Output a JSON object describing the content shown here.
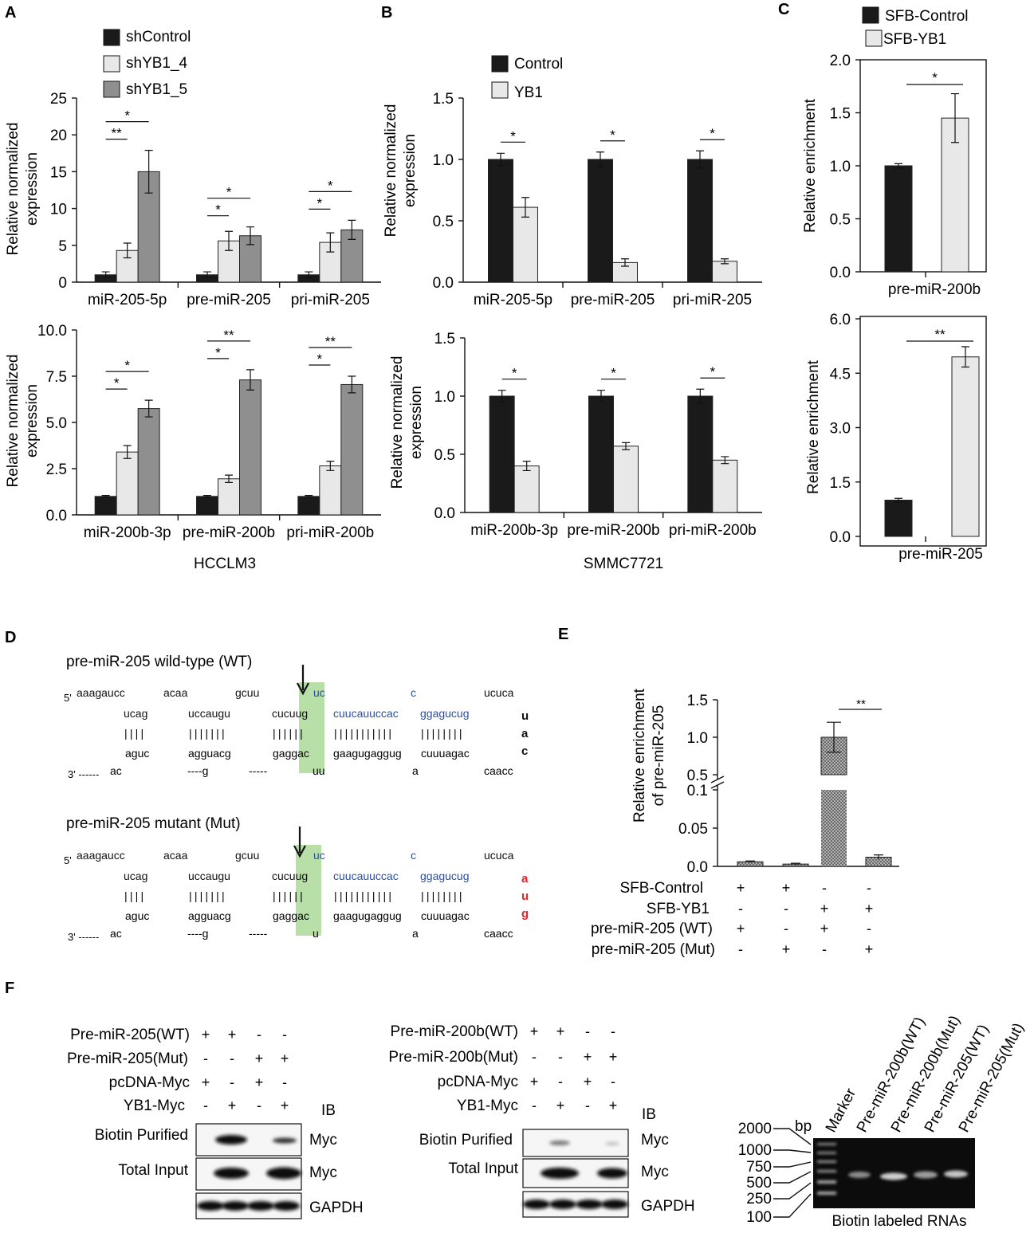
{
  "panels": {
    "A": {
      "letter": "A",
      "cell_line": "HCCLM3",
      "ylabel1": "Relative normalized",
      "ylabel2": "expression",
      "legend": [
        "shControl",
        "shYB1_4",
        "shYB1_5"
      ],
      "colors": [
        "#1a1a1a",
        "#e8e8e8",
        "#8f8f8f"
      ]
    },
    "B": {
      "letter": "B",
      "cell_line": "SMMC7721",
      "ylabel1": "Relative normalized",
      "ylabel2": "expression",
      "legend": [
        "Control",
        "YB1"
      ],
      "colors": [
        "#1a1a1a",
        "#e8e8e8"
      ]
    },
    "C": {
      "letter": "C",
      "ylabel": "Relative enrichment",
      "legend": [
        "SFB-Control",
        "SFB-YB1"
      ],
      "colors": [
        "#1a1a1a",
        "#e8e8e8"
      ]
    },
    "D": {
      "letter": "D",
      "wt": {
        "title": "pre-miR-205 wild-type (WT)",
        "top_unpaired": [
          "aaagaucc",
          "acaa",
          "gcuu",
          "uc",
          "c",
          "ucuca"
        ],
        "top_paired": [
          "ucag",
          "uccaugu",
          "cucuug",
          "cuucauuccac",
          "ggagucug"
        ],
        "bars": [
          "||||",
          "|||||||",
          "||||||",
          "|||||||||||",
          "||||||||"
        ],
        "bottom_paired": [
          "aguc",
          "agguacg",
          "gaggac",
          "gaagugaggug",
          "cuuuagac"
        ],
        "bottom_unpaired": [
          "ac",
          "----g",
          "-----",
          "uu",
          "a",
          "caacc"
        ],
        "loop": [
          "u",
          "a",
          "c"
        ],
        "prime5": "5'",
        "prime3": "3' ------"
      },
      "mut": {
        "title": "pre-miR-205 mutant (Mut)",
        "top_unpaired": [
          "aaagaucc",
          "acaa",
          "gcuu",
          "uc",
          "c",
          "ucuca"
        ],
        "top_paired": [
          "ucag",
          "uccaugu",
          "cucuug",
          "cuucauuccac",
          "ggagucug"
        ],
        "bars": [
          "||||",
          "|||||||",
          "||||||",
          "|||||||||||",
          "||||||||"
        ],
        "bottom_paired": [
          "aguc",
          "agguacg",
          "gaggac",
          "gaagugaggug",
          "cuuuagac"
        ],
        "bottom_unpaired": [
          "ac",
          "----g",
          "-----",
          "u",
          "a",
          "caacc"
        ],
        "loop": [
          "a",
          "u",
          "g"
        ],
        "prime5": "5'",
        "prime3": "3' ------"
      },
      "blue": "#2b4fa3",
      "red": "#e0262a",
      "highlight": "#b9dfa8"
    },
    "E": {
      "letter": "E",
      "ylabel1": "Relative enrichment",
      "ylabel2": "of pre-miR-205",
      "conditions": [
        {
          "label": "SFB-Control",
          "signs": [
            "+",
            "+",
            "-",
            "-"
          ]
        },
        {
          "label": "SFB-YB1",
          "signs": [
            "-",
            "-",
            "+",
            "+"
          ]
        },
        {
          "label": "pre-miR-205 (WT)",
          "signs": [
            "+",
            "-",
            "+",
            "-"
          ]
        },
        {
          "label": "pre-miR-205 (Mut)",
          "signs": [
            "-",
            "+",
            "-",
            "+"
          ]
        }
      ]
    },
    "F": {
      "letter": "F",
      "left": {
        "rows": [
          {
            "label": "Pre-miR-205(WT)",
            "signs": [
              "+",
              "+",
              "-",
              "-"
            ]
          },
          {
            "label": "Pre-miR-205(Mut)",
            "signs": [
              "-",
              "-",
              "+",
              "+"
            ]
          },
          {
            "label": "pcDNA-Myc",
            "signs": [
              "+",
              "-",
              "+",
              "-"
            ]
          },
          {
            "label": "YB1-Myc",
            "signs": [
              "-",
              "+",
              "-",
              "+"
            ]
          }
        ],
        "ib": "IB",
        "blot_labels": [
          "Biotin Purified",
          "Total Input"
        ],
        "antibodies": [
          "Myc",
          "Myc",
          "GAPDH"
        ]
      },
      "right": {
        "rows": [
          {
            "label": "Pre-miR-200b(WT)",
            "signs": [
              "+",
              "+",
              "-",
              "-"
            ]
          },
          {
            "label": "Pre-miR-200b(Mut)",
            "signs": [
              "-",
              "-",
              "+",
              "+"
            ]
          },
          {
            "label": "pcDNA-Myc",
            "signs": [
              "+",
              "-",
              "+",
              "-"
            ]
          },
          {
            "label": "YB1-Myc",
            "signs": [
              "-",
              "+",
              "-",
              "+"
            ]
          }
        ],
        "ib": "IB",
        "blot_labels": [
          "Biotin Purified",
          "Total Input"
        ],
        "antibodies": [
          "Myc",
          "Myc",
          "GAPDH"
        ]
      },
      "gel": {
        "lanes": [
          "Marker",
          "Pre-miR-200b(WT)",
          "Pre-miR-200b(Mut)",
          "Pre-miR-205(WT)",
          "Pre-miR-205(Mut)"
        ],
        "sizes": [
          "2000",
          "1000",
          "750",
          "500",
          "250",
          "100"
        ],
        "unit": "bp",
        "caption": "Biotin labeled RNAs"
      }
    }
  },
  "chart_data": [
    {
      "id": "A-top",
      "type": "bar",
      "categories": [
        "miR-205-5p",
        "pre-miR-205",
        "pri-miR-205"
      ],
      "series": [
        {
          "name": "shControl",
          "values": [
            1,
            1,
            1
          ],
          "errors": [
            0.4,
            0.4,
            0.4
          ]
        },
        {
          "name": "shYB1_4",
          "values": [
            4.3,
            5.6,
            5.4
          ],
          "errors": [
            1.0,
            1.3,
            1.3
          ]
        },
        {
          "name": "shYB1_5",
          "values": [
            15,
            6.3,
            7.1
          ],
          "errors": [
            2.9,
            1.2,
            1.3
          ]
        }
      ],
      "ylim": [
        0,
        25
      ],
      "yticks": [
        0,
        5,
        10,
        15,
        20,
        25
      ],
      "ytick_labels": [
        "0",
        "5",
        "10",
        "15",
        "20",
        "25"
      ],
      "sig": [
        {
          "cat": 0,
          "from": 0,
          "to": 1,
          "label": "**",
          "level": 0
        },
        {
          "cat": 0,
          "from": 0,
          "to": 2,
          "label": "*",
          "level": 1
        },
        {
          "cat": 1,
          "from": 0,
          "to": 1,
          "label": "*",
          "level": 0
        },
        {
          "cat": 1,
          "from": 0,
          "to": 2,
          "label": "*",
          "level": 1
        },
        {
          "cat": 2,
          "from": 0,
          "to": 1,
          "label": "*",
          "level": 0
        },
        {
          "cat": 2,
          "from": 0,
          "to": 2,
          "label": "*",
          "level": 1
        }
      ]
    },
    {
      "id": "A-bottom",
      "type": "bar",
      "categories": [
        "miR-200b-3p",
        "pre-miR-200b",
        "pri-miR-200b"
      ],
      "series": [
        {
          "name": "shControl",
          "values": [
            1,
            1,
            1
          ],
          "errors": [
            0.05,
            0.05,
            0.05
          ]
        },
        {
          "name": "shYB1_4",
          "values": [
            3.4,
            1.95,
            2.65
          ],
          "errors": [
            0.35,
            0.2,
            0.25
          ]
        },
        {
          "name": "shYB1_5",
          "values": [
            5.75,
            7.3,
            7.05
          ],
          "errors": [
            0.45,
            0.55,
            0.45
          ]
        }
      ],
      "ylim": [
        0,
        10
      ],
      "yticks": [
        0,
        2.5,
        5,
        7.5,
        10
      ],
      "ytick_labels": [
        "0.0",
        "2.5",
        "5.0",
        "7.5",
        "10.0"
      ],
      "sig": [
        {
          "cat": 0,
          "from": 0,
          "to": 1,
          "label": "*",
          "level": 0
        },
        {
          "cat": 0,
          "from": 0,
          "to": 2,
          "label": "*",
          "level": 1
        },
        {
          "cat": 1,
          "from": 0,
          "to": 1,
          "label": "*",
          "level": 0
        },
        {
          "cat": 1,
          "from": 0,
          "to": 2,
          "label": "**",
          "level": 1
        },
        {
          "cat": 2,
          "from": 0,
          "to": 1,
          "label": "*",
          "level": 0
        },
        {
          "cat": 2,
          "from": 0,
          "to": 2,
          "label": "**",
          "level": 1
        }
      ]
    },
    {
      "id": "B-top",
      "type": "bar",
      "categories": [
        "miR-205-5p",
        "pre-miR-205",
        "pri-miR-205"
      ],
      "series": [
        {
          "name": "Control",
          "values": [
            1,
            1,
            1
          ],
          "errors": [
            0.05,
            0.06,
            0.07
          ]
        },
        {
          "name": "YB1",
          "values": [
            0.61,
            0.16,
            0.17
          ],
          "errors": [
            0.08,
            0.03,
            0.02
          ]
        }
      ],
      "ylim": [
        0,
        1.5
      ],
      "yticks": [
        0,
        0.5,
        1,
        1.5
      ],
      "ytick_labels": [
        "0.0",
        "0.5",
        "1.0",
        "1.5"
      ],
      "sig": [
        {
          "cat": 0,
          "from": 0,
          "to": 1,
          "label": "*",
          "level": 0
        },
        {
          "cat": 1,
          "from": 0,
          "to": 1,
          "label": "*",
          "level": 0
        },
        {
          "cat": 2,
          "from": 0,
          "to": 1,
          "label": "*",
          "level": 0
        }
      ]
    },
    {
      "id": "B-bottom",
      "type": "bar",
      "categories": [
        "miR-200b-3p",
        "pre-miR-200b",
        "pri-miR-200b"
      ],
      "series": [
        {
          "name": "Control",
          "values": [
            1,
            1,
            1
          ],
          "errors": [
            0.05,
            0.05,
            0.06
          ]
        },
        {
          "name": "YB1",
          "values": [
            0.4,
            0.57,
            0.45
          ],
          "errors": [
            0.04,
            0.03,
            0.03
          ]
        }
      ],
      "ylim": [
        0,
        1.5
      ],
      "yticks": [
        0,
        0.5,
        1,
        1.5
      ],
      "ytick_labels": [
        "0.0",
        "0.5",
        "1.0",
        "1.5"
      ],
      "sig": [
        {
          "cat": 0,
          "from": 0,
          "to": 1,
          "label": "*",
          "level": 0
        },
        {
          "cat": 1,
          "from": 0,
          "to": 1,
          "label": "*",
          "level": 0
        },
        {
          "cat": 2,
          "from": 0,
          "to": 1,
          "label": "*",
          "level": 0
        }
      ]
    },
    {
      "id": "C-top",
      "type": "bar",
      "categories": [
        "pre-miR-200b"
      ],
      "series": [
        {
          "name": "SFB-Control",
          "values": [
            1.0
          ],
          "errors": [
            0.02
          ]
        },
        {
          "name": "SFB-YB1",
          "values": [
            1.45
          ],
          "errors": [
            0.23
          ]
        }
      ],
      "ylim": [
        0,
        2
      ],
      "yticks": [
        0,
        0.5,
        1,
        1.5,
        2
      ],
      "ytick_labels": [
        "0.0",
        "0.5",
        "1.0",
        "1.5",
        "2.0"
      ],
      "sig": [
        {
          "label": "*"
        }
      ]
    },
    {
      "id": "C-bottom",
      "type": "bar",
      "categories": [
        "pre-miR-205"
      ],
      "series": [
        {
          "name": "SFB-Control",
          "values": [
            1.0
          ],
          "errors": [
            0.05
          ]
        },
        {
          "name": "SFB-YB1",
          "values": [
            4.95
          ],
          "errors": [
            0.28
          ]
        }
      ],
      "ylim": [
        0,
        6
      ],
      "yticks": [
        0,
        1.5,
        3,
        4.5,
        6
      ],
      "ytick_labels": [
        "0.0",
        "1.5",
        "3.0",
        "4.5",
        "6.0"
      ],
      "sig": [
        {
          "label": "**"
        }
      ]
    },
    {
      "id": "E",
      "type": "bar",
      "categories": [
        "1",
        "2",
        "3",
        "4"
      ],
      "series": [
        {
          "values": [
            0.006,
            0.003,
            1.0,
            0.012
          ],
          "errors": [
            0.001,
            0.001,
            0.2,
            0.003
          ]
        }
      ],
      "broken_axis": {
        "lower": [
          0,
          0.1
        ],
        "upper": [
          0.5,
          1.5
        ]
      },
      "ytick_labels": [
        "0.0",
        "0.05",
        "0.1",
        "0.5",
        "1.0",
        "1.5"
      ],
      "sig": [
        {
          "from": 2,
          "to": 3,
          "label": "**"
        }
      ]
    }
  ]
}
